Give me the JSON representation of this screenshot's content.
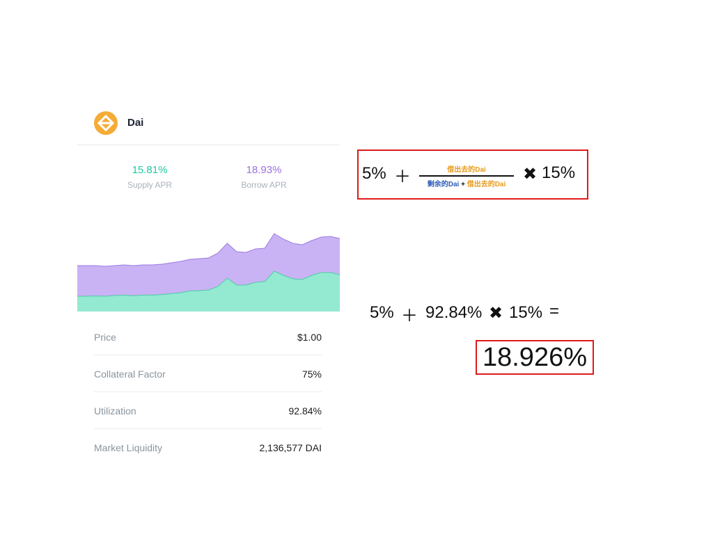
{
  "token": {
    "name": "Dai",
    "icon": "dai-diamond-icon",
    "icon_color": "#f5ac37"
  },
  "apr": {
    "supply_value": "15.81%",
    "supply_label": "Supply APR",
    "supply_color": "#1fc8a0",
    "borrow_value": "18.93%",
    "borrow_label": "Borrow APR",
    "borrow_color": "#9c6fe0"
  },
  "stats": [
    {
      "label": "Price",
      "value": "$1.00"
    },
    {
      "label": "Collateral Factor",
      "value": "75%"
    },
    {
      "label": "Utilization",
      "value": "92.84%"
    },
    {
      "label": "Market Liquidity",
      "value": "2,136,577 DAI"
    }
  ],
  "chart_data": {
    "type": "area",
    "series": [
      {
        "color": "#c9b3f5",
        "values": [
          33,
          33,
          33,
          32.5,
          33,
          33.5,
          33,
          33.5,
          33.5,
          34,
          35,
          36,
          37.5,
          38,
          38.5,
          42,
          49,
          43,
          42.5,
          45,
          45.5,
          56,
          52,
          49,
          48,
          51,
          53.5,
          54,
          52.5
        ]
      },
      {
        "color": "#94e9d1",
        "values": [
          11,
          11,
          11.2,
          11,
          11.5,
          11.8,
          11.3,
          11.8,
          11.8,
          12.2,
          12.8,
          13.5,
          14.8,
          15,
          15.5,
          18,
          24,
          19,
          19,
          21,
          21.5,
          29,
          26,
          23.5,
          23,
          26,
          28,
          28,
          26.5
        ]
      }
    ],
    "ylim": [
      0,
      64
    ]
  },
  "formula": {
    "term1": "5%",
    "plus": "＋",
    "numerator": "借出去的Dai",
    "denominator_a": "剩余的Dai",
    "denominator_plus": "+",
    "denominator_b": "借出去的Dai",
    "times": "✖",
    "term2": "15%"
  },
  "calculation": {
    "term1": "5%",
    "plus": "＋",
    "utilization": "92.84%",
    "times": "✖",
    "term2": "15%",
    "equals": "="
  },
  "result": "18.926%"
}
